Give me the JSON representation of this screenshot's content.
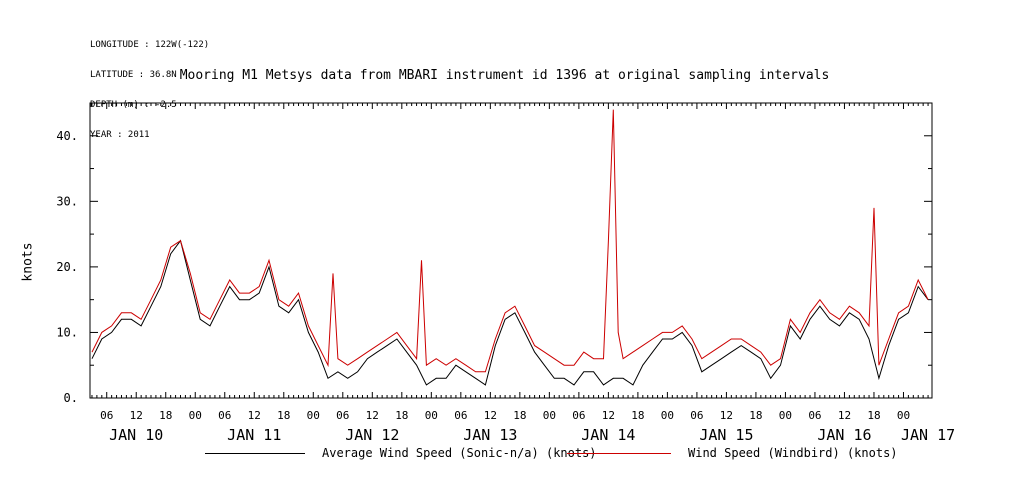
{
  "header": {
    "meta_lines": [
      "LONGITUDE : 122W(-122)",
      "LATITUDE : 36.8N",
      "DEPTH (m) : -2.5",
      "YEAR : 2011"
    ],
    "title": "Mooring M1 Metsys data from MBARI instrument id 1396 at original sampling intervals"
  },
  "chart_data": {
    "type": "line",
    "title": "Mooring M1 Metsys data from MBARI instrument id 1396 at original sampling intervals",
    "ylabel": "knots",
    "xlabel": "",
    "ylim": [
      0,
      45
    ],
    "y_ticks": [
      0,
      10,
      20,
      30,
      40
    ],
    "y_tick_labels": [
      "0.",
      "10.",
      "20.",
      "30.",
      "40."
    ],
    "x_unit": "hours since JAN 10 00:00",
    "xlim": [
      2.6,
      173.8
    ],
    "hour_tick_labels": [
      "06",
      "12",
      "18",
      "00",
      "06",
      "12",
      "18",
      "00",
      "06",
      "12",
      "18",
      "00",
      "06",
      "12",
      "18",
      "00",
      "06",
      "12",
      "18",
      "00",
      "06",
      "12",
      "18",
      "00",
      "06",
      "12",
      "18",
      "00",
      "06",
      "12",
      "18",
      "00"
    ],
    "day_labels": [
      {
        "label": "JAN 10",
        "x": 12
      },
      {
        "label": "JAN 11",
        "x": 36
      },
      {
        "label": "JAN 12",
        "x": 60
      },
      {
        "label": "JAN 13",
        "x": 84
      },
      {
        "label": "JAN 14",
        "x": 108
      },
      {
        "label": "JAN 15",
        "x": 132
      },
      {
        "label": "JAN 16",
        "x": 156
      },
      {
        "label": "JAN 17",
        "x": 173
      }
    ],
    "grid": false,
    "legend_position": "bottom",
    "series": [
      {
        "name": "Average Wind Speed (Sonic-n/a) (knots)",
        "color": "#000000",
        "x": [
          3,
          5,
          7,
          9,
          11,
          13,
          15,
          17,
          19,
          21,
          23,
          25,
          27,
          29,
          31,
          33,
          35,
          37,
          39,
          41,
          43,
          45,
          47,
          49,
          51,
          53,
          55,
          57,
          59,
          61,
          63,
          65,
          67,
          69,
          71,
          73,
          75,
          77,
          79,
          81,
          83,
          85,
          87,
          89,
          91,
          93,
          95,
          97,
          99,
          101,
          103,
          105,
          107,
          109,
          111,
          113,
          115,
          117,
          119,
          121,
          123,
          125,
          127,
          129,
          131,
          133,
          135,
          137,
          139,
          141,
          143,
          145,
          147,
          149,
          151,
          153,
          155,
          157,
          159,
          161,
          163,
          165,
          167,
          169,
          171,
          173
        ],
        "values": [
          6,
          9,
          10,
          12,
          12,
          11,
          14,
          17,
          22,
          24,
          18,
          12,
          11,
          14,
          17,
          15,
          15,
          16,
          20,
          14,
          13,
          15,
          10,
          7,
          3,
          4,
          3,
          4,
          6,
          7,
          8,
          9,
          7,
          5,
          2,
          3,
          3,
          5,
          4,
          3,
          2,
          8,
          12,
          13,
          10,
          7,
          5,
          3,
          3,
          2,
          4,
          4,
          2,
          3,
          3,
          2,
          5,
          7,
          9,
          9,
          10,
          8,
          4,
          5,
          6,
          7,
          8,
          7,
          6,
          3,
          5,
          11,
          9,
          12,
          14,
          12,
          11,
          13,
          12,
          9,
          3,
          8,
          12,
          13,
          17,
          15
        ]
      },
      {
        "name": "Wind Speed (Windbird) (knots)",
        "color": "#cc0000",
        "x": [
          3,
          5,
          7,
          9,
          11,
          13,
          15,
          17,
          19,
          21,
          23,
          25,
          27,
          29,
          31,
          33,
          35,
          37,
          39,
          41,
          43,
          45,
          47,
          49,
          51,
          52,
          53,
          55,
          57,
          59,
          61,
          63,
          65,
          67,
          69,
          70,
          71,
          73,
          75,
          77,
          79,
          81,
          83,
          85,
          87,
          89,
          91,
          93,
          95,
          97,
          99,
          101,
          103,
          105,
          107,
          108,
          109,
          110,
          111,
          113,
          115,
          117,
          119,
          121,
          123,
          125,
          127,
          129,
          131,
          133,
          135,
          137,
          139,
          141,
          143,
          145,
          147,
          149,
          151,
          153,
          155,
          157,
          159,
          161,
          162,
          163,
          165,
          167,
          169,
          171,
          173
        ],
        "values": [
          7,
          10,
          11,
          13,
          13,
          12,
          15,
          18,
          23,
          24,
          19,
          13,
          12,
          15,
          18,
          16,
          16,
          17,
          21,
          15,
          14,
          16,
          11,
          8,
          5,
          19,
          6,
          5,
          6,
          7,
          8,
          9,
          10,
          8,
          6,
          21,
          5,
          6,
          5,
          6,
          5,
          4,
          4,
          9,
          13,
          14,
          11,
          8,
          7,
          6,
          5,
          5,
          7,
          6,
          6,
          24,
          44,
          10,
          6,
          7,
          8,
          9,
          10,
          10,
          11,
          9,
          6,
          7,
          8,
          9,
          9,
          8,
          7,
          5,
          6,
          12,
          10,
          13,
          15,
          13,
          12,
          14,
          13,
          11,
          29,
          5,
          9,
          13,
          14,
          18,
          15
        ]
      }
    ]
  },
  "legend": {
    "black_label": "Average Wind Speed (Sonic-n/a) (knots)",
    "red_label": "Wind Speed (Windbird) (knots)"
  }
}
